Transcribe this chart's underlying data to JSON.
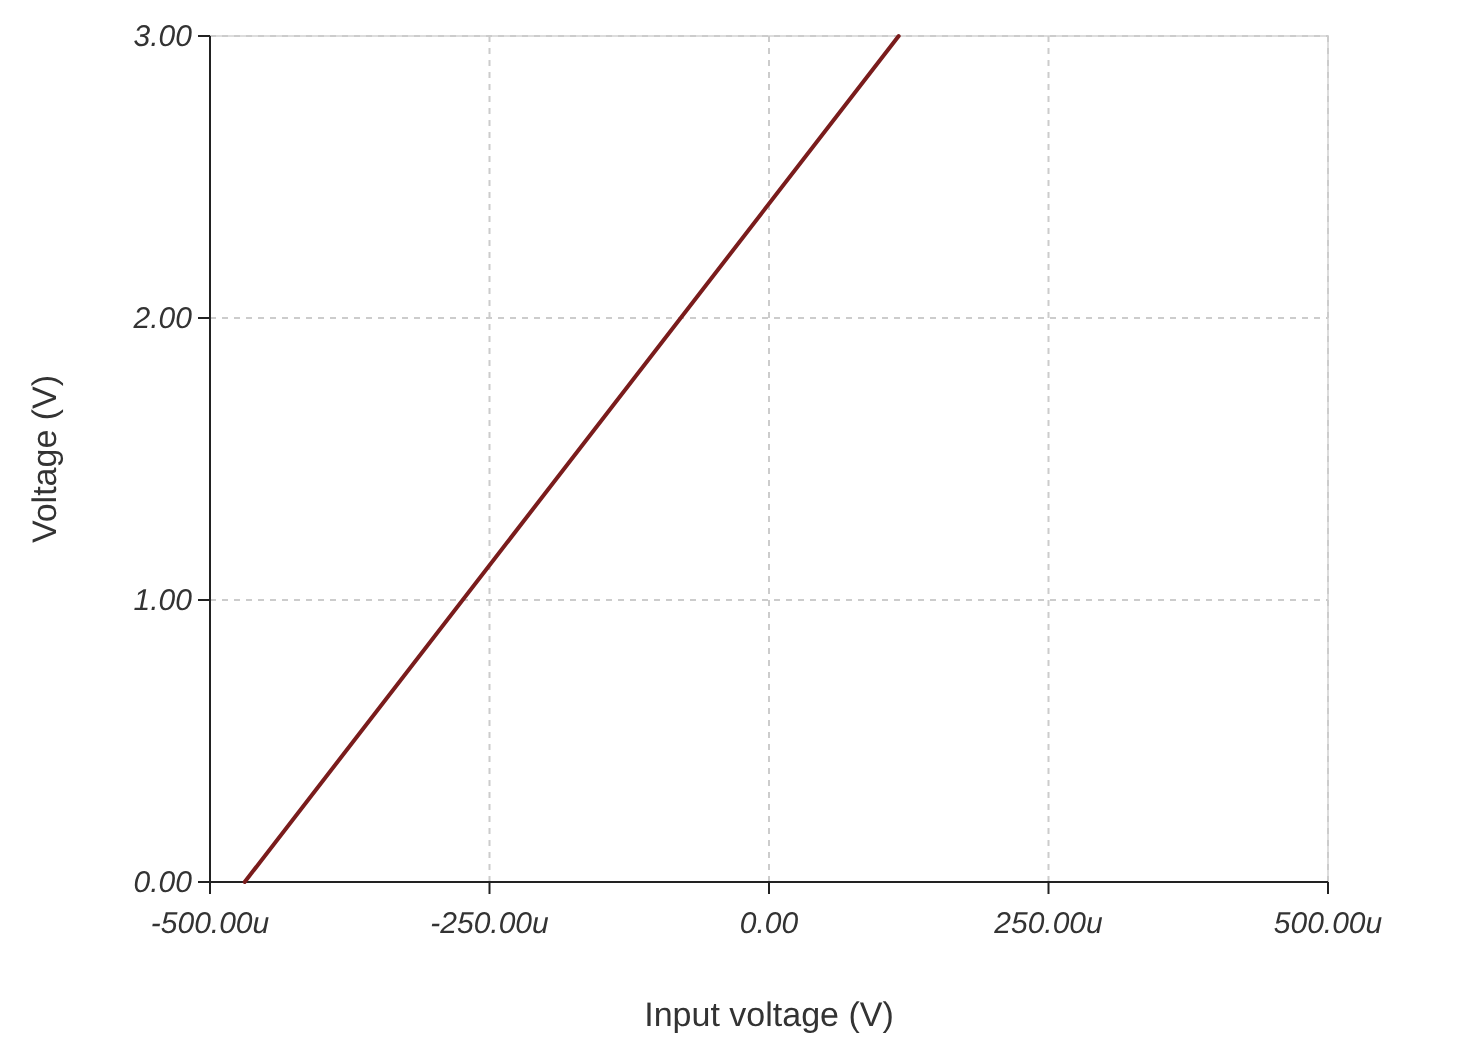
{
  "chart_data": {
    "type": "line",
    "xlabel": "Input voltage (V)",
    "ylabel": "Voltage (V)",
    "x": [
      -469,
      116
    ],
    "series": [
      {
        "color": "#7a1c1c",
        "values": [
          0,
          3.0
        ]
      }
    ],
    "xlim": [
      -500,
      500
    ],
    "xticks": [
      {
        "value": -500,
        "label": "-500.00u"
      },
      {
        "value": -250,
        "label": "-250.00u"
      },
      {
        "value": 0,
        "label": "0.00"
      },
      {
        "value": 250,
        "label": "250.00u"
      },
      {
        "value": 500,
        "label": "500.00u"
      }
    ],
    "ylim": [
      0,
      3
    ],
    "yticks": [
      {
        "value": 0,
        "label": "0.00"
      },
      {
        "value": 1,
        "label": "1.00"
      },
      {
        "value": 2,
        "label": "2.00"
      },
      {
        "value": 3,
        "label": "3.00"
      }
    ],
    "grid": true,
    "line_style": "solid",
    "marker": "none"
  }
}
